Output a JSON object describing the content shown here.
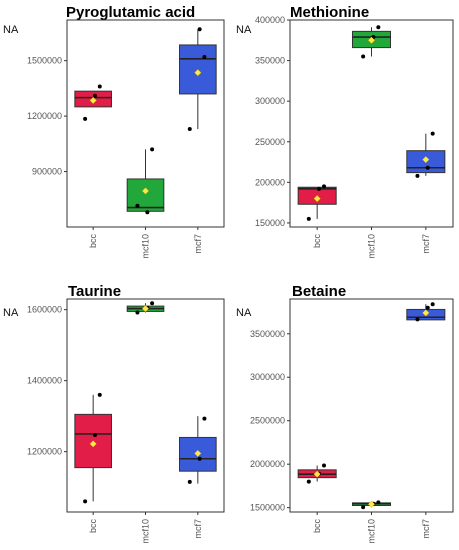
{
  "figure": {
    "na_label": "NA"
  },
  "chart_data": [
    {
      "type": "boxplot",
      "title": "Pyroglutamic acid",
      "categories": [
        "bcc",
        "mcf10",
        "mcf7"
      ],
      "ylim": [
        600000,
        1720000
      ],
      "yticks": [
        900000,
        1200000,
        1500000
      ],
      "ytick_labels": [
        "900000",
        "1200000",
        "1500000"
      ],
      "grid": false,
      "boxes": [
        {
          "category": "bcc",
          "color": "#e11d48",
          "q1": 1250000,
          "median": 1300000,
          "q3": 1335000,
          "whisker_low": 1250000,
          "whisker_high": 1335000,
          "mean": 1285000,
          "points": [
            1185000,
            1360000,
            1310000
          ]
        },
        {
          "category": "mcf10",
          "color": "#22a83a",
          "q1": 685000,
          "median": 705000,
          "q3": 860000,
          "whisker_low": 685000,
          "whisker_high": 1020000,
          "mean": 795000,
          "points": [
            715000,
            1020000,
            680000
          ]
        },
        {
          "category": "mcf7",
          "color": "#3a5bd9",
          "q1": 1320000,
          "median": 1510000,
          "q3": 1585000,
          "whisker_low": 1130000,
          "whisker_high": 1670000,
          "mean": 1435000,
          "points": [
            1130000,
            1520000,
            1670000
          ]
        }
      ]
    },
    {
      "type": "boxplot",
      "title": "Methionine",
      "categories": [
        "bcc",
        "mcf10",
        "mcf7"
      ],
      "ylim": [
        145000,
        400000
      ],
      "yticks": [
        150000,
        200000,
        250000,
        300000,
        350000,
        400000
      ],
      "ytick_labels": [
        "150000",
        "200000",
        "250000",
        "300000",
        "350000",
        "400000"
      ],
      "grid": false,
      "boxes": [
        {
          "category": "bcc",
          "color": "#e11d48",
          "q1": 173000,
          "median": 192000,
          "q3": 194000,
          "whisker_low": 155000,
          "whisker_high": 194000,
          "mean": 180000,
          "points": [
            155000,
            195000,
            192000
          ]
        },
        {
          "category": "mcf10",
          "color": "#22a83a",
          "q1": 366000,
          "median": 379000,
          "q3": 386000,
          "whisker_low": 355000,
          "whisker_high": 391000,
          "mean": 375000,
          "points": [
            355000,
            391000,
            379000
          ]
        },
        {
          "category": "mcf7",
          "color": "#3a5bd9",
          "q1": 212000,
          "median": 218000,
          "q3": 239000,
          "whisker_low": 208000,
          "whisker_high": 260000,
          "mean": 228000,
          "points": [
            208000,
            260000,
            218000
          ]
        }
      ]
    },
    {
      "type": "boxplot",
      "title": "Taurine",
      "categories": [
        "bcc",
        "mcf10",
        "mcf7"
      ],
      "ylim": [
        1030000,
        1630000
      ],
      "yticks": [
        1200000,
        1400000,
        1600000
      ],
      "ytick_labels": [
        "1200000",
        "1400000",
        "1600000"
      ],
      "grid": false,
      "boxes": [
        {
          "category": "bcc",
          "color": "#e11d48",
          "q1": 1155000,
          "median": 1250000,
          "q3": 1305000,
          "whisker_low": 1060000,
          "whisker_high": 1360000,
          "mean": 1222000,
          "points": [
            1060000,
            1360000,
            1247000
          ]
        },
        {
          "category": "mcf10",
          "color": "#22a83a",
          "q1": 1595000,
          "median": 1603000,
          "q3": 1610000,
          "whisker_low": 1592000,
          "whisker_high": 1618000,
          "mean": 1603000,
          "points": [
            1592000,
            1618000,
            1605000
          ]
        },
        {
          "category": "mcf7",
          "color": "#3a5bd9",
          "q1": 1145000,
          "median": 1180000,
          "q3": 1240000,
          "whisker_low": 1110000,
          "whisker_high": 1300000,
          "mean": 1195000,
          "points": [
            1115000,
            1293000,
            1180000
          ]
        }
      ]
    },
    {
      "type": "boxplot",
      "title": "Betaine",
      "categories": [
        "bcc",
        "mcf10",
        "mcf7"
      ],
      "ylim": [
        1450000,
        3900000
      ],
      "yticks": [
        1500000,
        2000000,
        2500000,
        3000000,
        3500000
      ],
      "ytick_labels": [
        "1500000",
        "2000000",
        "2500000",
        "3000000",
        "3500000"
      ],
      "grid": false,
      "boxes": [
        {
          "category": "bcc",
          "color": "#e11d48",
          "q1": 1845000,
          "median": 1885000,
          "q3": 1935000,
          "whisker_low": 1800000,
          "whisker_high": 1985000,
          "mean": 1885000,
          "points": [
            1800000,
            1985000,
            1890000
          ]
        },
        {
          "category": "mcf10",
          "color": "#22a83a",
          "q1": 1525000,
          "median": 1545000,
          "q3": 1555000,
          "whisker_low": 1505000,
          "whisker_high": 1565000,
          "mean": 1540000,
          "points": [
            1505000,
            1560000,
            1545000
          ]
        },
        {
          "category": "mcf7",
          "color": "#3a5bd9",
          "q1": 3660000,
          "median": 3690000,
          "q3": 3780000,
          "whisker_low": 3660000,
          "whisker_high": 3840000,
          "mean": 3740000,
          "points": [
            3665000,
            3840000,
            3800000
          ]
        }
      ]
    }
  ]
}
